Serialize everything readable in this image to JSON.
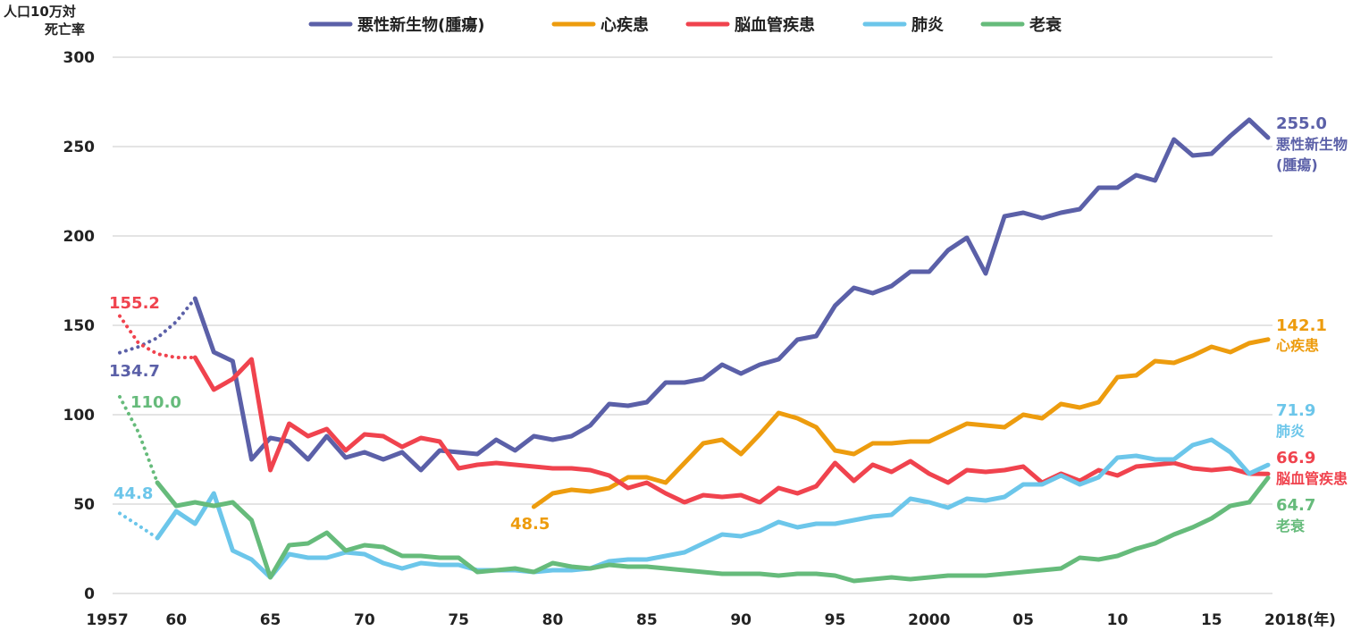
{
  "chart_data": {
    "type": "line",
    "ylabel_line1": "人口10万対",
    "ylabel_line2": "死亡率",
    "ylim": [
      0,
      300
    ],
    "yticks": [
      "0",
      "50",
      "100",
      "150",
      "200",
      "250",
      "300"
    ],
    "xlim": [
      1957,
      2018
    ],
    "xticks": [
      {
        "year": 1957,
        "label": "1957"
      },
      {
        "year": 1960,
        "label": "60"
      },
      {
        "year": 1965,
        "label": "65"
      },
      {
        "year": 1970,
        "label": "70"
      },
      {
        "year": 1975,
        "label": "75"
      },
      {
        "year": 1980,
        "label": "80"
      },
      {
        "year": 1985,
        "label": "85"
      },
      {
        "year": 1990,
        "label": "90"
      },
      {
        "year": 1995,
        "label": "95"
      },
      {
        "year": 2000,
        "label": "2000"
      },
      {
        "year": 2005,
        "label": "05"
      },
      {
        "year": 2010,
        "label": "10"
      },
      {
        "year": 2015,
        "label": "15"
      },
      {
        "year": 2018,
        "label": "2018(年)"
      }
    ],
    "grid": true,
    "legend_position": "top",
    "series": [
      {
        "name": "悪性新生物(腫瘍)",
        "label_line1": "悪性新生物",
        "label_line2": "(腫瘍)",
        "color": "#5b60a8",
        "dotted": [
          [
            1957,
            134.7
          ],
          [
            1958,
            138
          ],
          [
            1959,
            143
          ],
          [
            1960,
            152
          ],
          [
            1961,
            165
          ]
        ],
        "solid": [
          [
            1961,
            165
          ],
          [
            1962,
            135
          ],
          [
            1963,
            130
          ],
          [
            1964,
            75
          ],
          [
            1965,
            87
          ],
          [
            1966,
            85
          ],
          [
            1967,
            75
          ],
          [
            1968,
            88
          ],
          [
            1969,
            76
          ],
          [
            1970,
            79
          ],
          [
            1971,
            75
          ],
          [
            1972,
            79
          ],
          [
            1973,
            69
          ],
          [
            1974,
            80
          ],
          [
            1975,
            79
          ],
          [
            1976,
            78
          ],
          [
            1977,
            86
          ],
          [
            1978,
            80
          ],
          [
            1979,
            88
          ],
          [
            1980,
            86
          ],
          [
            1981,
            88
          ],
          [
            1982,
            94
          ],
          [
            1983,
            106
          ],
          [
            1984,
            105
          ],
          [
            1985,
            107
          ],
          [
            1986,
            118
          ],
          [
            1987,
            118
          ],
          [
            1988,
            120
          ],
          [
            1989,
            128
          ],
          [
            1990,
            123
          ],
          [
            1991,
            128
          ],
          [
            1992,
            131
          ],
          [
            1993,
            142
          ],
          [
            1994,
            144
          ],
          [
            1995,
            161
          ],
          [
            1996,
            171
          ],
          [
            1997,
            168
          ],
          [
            1998,
            172
          ],
          [
            1999,
            180
          ],
          [
            2000,
            180
          ],
          [
            2001,
            192
          ],
          [
            2002,
            199
          ],
          [
            2003,
            179
          ],
          [
            2004,
            211
          ],
          [
            2005,
            213
          ],
          [
            2006,
            210
          ],
          [
            2007,
            213
          ],
          [
            2008,
            215
          ],
          [
            2009,
            227
          ],
          [
            2010,
            227
          ],
          [
            2011,
            234
          ],
          [
            2012,
            231
          ],
          [
            2013,
            254
          ],
          [
            2014,
            245
          ],
          [
            2015,
            246
          ],
          [
            2016,
            256
          ],
          [
            2017,
            265
          ],
          [
            2018,
            255
          ]
        ],
        "start_label": "134.7",
        "end_label": "255.0"
      },
      {
        "name": "心疾患",
        "label_line1": "心疾患",
        "label_line2": "",
        "color": "#ed9c0e",
        "dotted": [],
        "solid": [
          [
            1979,
            48.5
          ],
          [
            1980,
            56
          ],
          [
            1981,
            58
          ],
          [
            1982,
            57
          ],
          [
            1983,
            59
          ],
          [
            1984,
            65
          ],
          [
            1985,
            65
          ],
          [
            1986,
            62
          ],
          [
            1987,
            73
          ],
          [
            1988,
            84
          ],
          [
            1989,
            86
          ],
          [
            1990,
            78
          ],
          [
            1991,
            89
          ],
          [
            1992,
            101
          ],
          [
            1993,
            98
          ],
          [
            1994,
            93
          ],
          [
            1995,
            80
          ],
          [
            1996,
            78
          ],
          [
            1997,
            84
          ],
          [
            1998,
            84
          ],
          [
            1999,
            85
          ],
          [
            2000,
            85
          ],
          [
            2001,
            90
          ],
          [
            2002,
            95
          ],
          [
            2003,
            94
          ],
          [
            2004,
            93
          ],
          [
            2005,
            100
          ],
          [
            2006,
            98
          ],
          [
            2007,
            106
          ],
          [
            2008,
            104
          ],
          [
            2009,
            107
          ],
          [
            2010,
            121
          ],
          [
            2011,
            122
          ],
          [
            2012,
            130
          ],
          [
            2013,
            129
          ],
          [
            2014,
            133
          ],
          [
            2015,
            138
          ],
          [
            2016,
            135
          ],
          [
            2017,
            140
          ],
          [
            2018,
            142.1
          ]
        ],
        "start_label": "48.5",
        "end_label": "142.1"
      },
      {
        "name": "脳血管疾患",
        "label_line1": "脳血管疾患",
        "label_line2": "",
        "color": "#f0434e",
        "dotted": [
          [
            1957,
            155.2
          ],
          [
            1958,
            140
          ],
          [
            1959,
            134
          ],
          [
            1960,
            132
          ],
          [
            1961,
            132
          ]
        ],
        "solid": [
          [
            1961,
            132
          ],
          [
            1962,
            114
          ],
          [
            1963,
            120
          ],
          [
            1964,
            131
          ],
          [
            1965,
            69
          ],
          [
            1966,
            95
          ],
          [
            1967,
            88
          ],
          [
            1968,
            92
          ],
          [
            1969,
            80
          ],
          [
            1970,
            89
          ],
          [
            1971,
            88
          ],
          [
            1972,
            82
          ],
          [
            1973,
            87
          ],
          [
            1974,
            85
          ],
          [
            1975,
            70
          ],
          [
            1976,
            72
          ],
          [
            1977,
            73
          ],
          [
            1978,
            72
          ],
          [
            1979,
            71
          ],
          [
            1980,
            70
          ],
          [
            1981,
            70
          ],
          [
            1982,
            69
          ],
          [
            1983,
            66
          ],
          [
            1984,
            59
          ],
          [
            1985,
            62
          ],
          [
            1986,
            56
          ],
          [
            1987,
            51
          ],
          [
            1988,
            55
          ],
          [
            1989,
            54
          ],
          [
            1990,
            55
          ],
          [
            1991,
            51
          ],
          [
            1992,
            59
          ],
          [
            1993,
            56
          ],
          [
            1994,
            60
          ],
          [
            1995,
            73
          ],
          [
            1996,
            63
          ],
          [
            1997,
            72
          ],
          [
            1998,
            68
          ],
          [
            1999,
            74
          ],
          [
            2000,
            67
          ],
          [
            2001,
            62
          ],
          [
            2002,
            69
          ],
          [
            2003,
            68
          ],
          [
            2004,
            69
          ],
          [
            2005,
            71
          ],
          [
            2006,
            62
          ],
          [
            2007,
            67
          ],
          [
            2008,
            63
          ],
          [
            2009,
            69
          ],
          [
            2010,
            66
          ],
          [
            2011,
            71
          ],
          [
            2012,
            72
          ],
          [
            2013,
            73
          ],
          [
            2014,
            70
          ],
          [
            2015,
            69
          ],
          [
            2016,
            70
          ],
          [
            2017,
            67
          ],
          [
            2018,
            66.9
          ]
        ],
        "start_label": "155.2",
        "end_label": "66.9"
      },
      {
        "name": "肺炎",
        "label_line1": "肺炎",
        "label_line2": "",
        "color": "#6cc6ea",
        "dotted": [
          [
            1957,
            44.8
          ],
          [
            1958,
            38
          ],
          [
            1959,
            31
          ]
        ],
        "solid": [
          [
            1959,
            31
          ],
          [
            1960,
            46
          ],
          [
            1961,
            39
          ],
          [
            1962,
            56
          ],
          [
            1963,
            24
          ],
          [
            1964,
            19
          ],
          [
            1965,
            9
          ],
          [
            1966,
            22
          ],
          [
            1967,
            20
          ],
          [
            1968,
            20
          ],
          [
            1969,
            23
          ],
          [
            1970,
            22
          ],
          [
            1971,
            17
          ],
          [
            1972,
            14
          ],
          [
            1973,
            17
          ],
          [
            1974,
            16
          ],
          [
            1975,
            16
          ],
          [
            1976,
            13
          ],
          [
            1977,
            13
          ],
          [
            1978,
            13
          ],
          [
            1979,
            12
          ],
          [
            1980,
            13
          ],
          [
            1981,
            13
          ],
          [
            1982,
            14
          ],
          [
            1983,
            18
          ],
          [
            1984,
            19
          ],
          [
            1985,
            19
          ],
          [
            1986,
            21
          ],
          [
            1987,
            23
          ],
          [
            1988,
            28
          ],
          [
            1989,
            33
          ],
          [
            1990,
            32
          ],
          [
            1991,
            35
          ],
          [
            1992,
            40
          ],
          [
            1993,
            37
          ],
          [
            1994,
            39
          ],
          [
            1995,
            39
          ],
          [
            1996,
            41
          ],
          [
            1997,
            43
          ],
          [
            1998,
            44
          ],
          [
            1999,
            53
          ],
          [
            2000,
            51
          ],
          [
            2001,
            48
          ],
          [
            2002,
            53
          ],
          [
            2003,
            52
          ],
          [
            2004,
            54
          ],
          [
            2005,
            61
          ],
          [
            2006,
            61
          ],
          [
            2007,
            66
          ],
          [
            2008,
            61
          ],
          [
            2009,
            65
          ],
          [
            2010,
            76
          ],
          [
            2011,
            77
          ],
          [
            2012,
            75
          ],
          [
            2013,
            75
          ],
          [
            2014,
            83
          ],
          [
            2015,
            86
          ],
          [
            2016,
            79
          ],
          [
            2017,
            67
          ],
          [
            2018,
            71.9
          ]
        ],
        "start_label": "44.8",
        "end_label": "71.9"
      },
      {
        "name": "老衰",
        "label_line1": "老衰",
        "label_line2": "",
        "color": "#66bb7b",
        "dotted": [
          [
            1957,
            110.0
          ],
          [
            1958,
            90
          ],
          [
            1959,
            62
          ]
        ],
        "solid": [
          [
            1959,
            62
          ],
          [
            1960,
            49
          ],
          [
            1961,
            51
          ],
          [
            1962,
            49
          ],
          [
            1963,
            51
          ],
          [
            1964,
            41
          ],
          [
            1965,
            9
          ],
          [
            1966,
            27
          ],
          [
            1967,
            28
          ],
          [
            1968,
            34
          ],
          [
            1969,
            24
          ],
          [
            1970,
            27
          ],
          [
            1971,
            26
          ],
          [
            1972,
            21
          ],
          [
            1973,
            21
          ],
          [
            1974,
            20
          ],
          [
            1975,
            20
          ],
          [
            1976,
            12
          ],
          [
            1977,
            13
          ],
          [
            1978,
            14
          ],
          [
            1979,
            12
          ],
          [
            1980,
            17
          ],
          [
            1981,
            15
          ],
          [
            1982,
            14
          ],
          [
            1983,
            16
          ],
          [
            1984,
            15
          ],
          [
            1985,
            15
          ],
          [
            1986,
            14
          ],
          [
            1987,
            13
          ],
          [
            1988,
            12
          ],
          [
            1989,
            11
          ],
          [
            1990,
            11
          ],
          [
            1991,
            11
          ],
          [
            1992,
            10
          ],
          [
            1993,
            11
          ],
          [
            1994,
            11
          ],
          [
            1995,
            10
          ],
          [
            1996,
            7
          ],
          [
            1997,
            8
          ],
          [
            1998,
            9
          ],
          [
            1999,
            8
          ],
          [
            2000,
            9
          ],
          [
            2001,
            10
          ],
          [
            2002,
            10
          ],
          [
            2003,
            10
          ],
          [
            2004,
            11
          ],
          [
            2005,
            12
          ],
          [
            2006,
            13
          ],
          [
            2007,
            14
          ],
          [
            2008,
            20
          ],
          [
            2009,
            19
          ],
          [
            2010,
            21
          ],
          [
            2011,
            25
          ],
          [
            2012,
            28
          ],
          [
            2013,
            33
          ],
          [
            2014,
            37
          ],
          [
            2015,
            42
          ],
          [
            2016,
            49
          ],
          [
            2017,
            51
          ],
          [
            2018,
            64.7
          ]
        ],
        "start_label": "110.0",
        "end_label": "64.7"
      }
    ]
  }
}
